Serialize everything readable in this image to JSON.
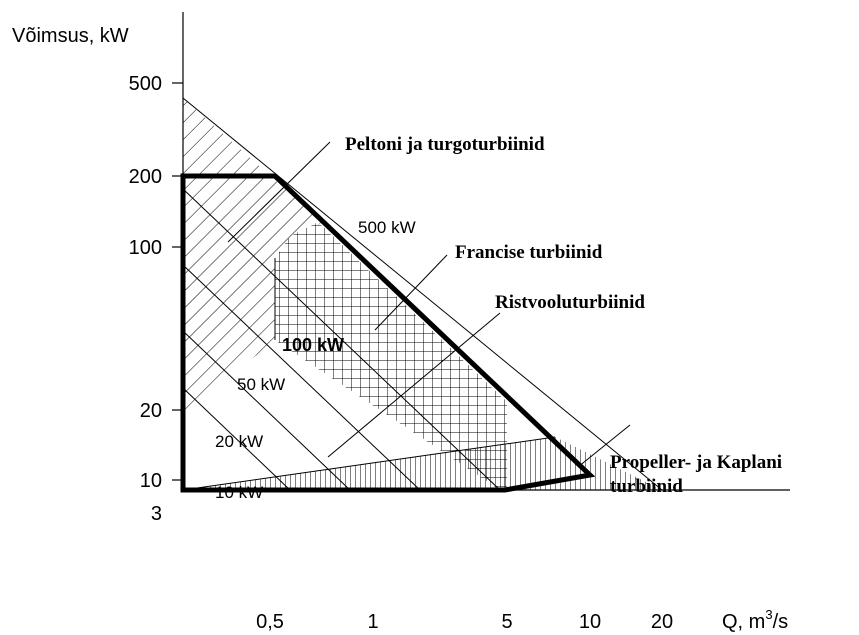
{
  "axes": {
    "y_label": "Võimsus, kW",
    "x_label": "Q, m",
    "x_label_sup": "3",
    "x_label_unit": "/s",
    "y_ticks": [
      "500",
      "200",
      "100",
      "20",
      "10",
      "3"
    ],
    "x_ticks": [
      "0,5",
      "1",
      "5",
      "10",
      "20"
    ]
  },
  "regions": [
    "Peltoni ja turgoturbiinid",
    "Francise turbiinid",
    "Ristvooluturbiinid",
    "Propeller- ja Kaplani turbiinid"
  ],
  "power_lines": [
    "500 kW",
    "100 kW",
    "50 kW",
    "20 kW",
    "10 kW"
  ]
}
